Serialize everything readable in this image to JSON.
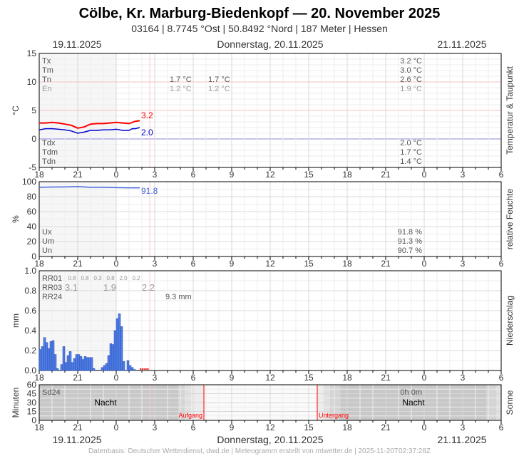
{
  "header": {
    "title": "Cölbe, Kr. Marburg-Biedenkopf  —  20. November 2025",
    "subtitle": "03164  |  8.7745 °Ost  |  50.8492 °Nord  |  187 Meter  |  Hessen"
  },
  "dates": {
    "left": "19.11.2025",
    "center": "Donnerstag, 20.11.2025",
    "right": "21.11.2025"
  },
  "footer": "Datenbasis: Deutscher Wetterdienst, dwd.de | Meteogramm erstellt von mtwetter.de | 2025-11-20T02:37:28Z",
  "x_ticks": [
    "18",
    "21",
    "0",
    "3",
    "6",
    "9",
    "12",
    "15",
    "18",
    "21",
    "0",
    "3",
    "6"
  ],
  "current_time": "02:37",
  "colors": {
    "temp": "#ff0000",
    "dew": "#0000cc",
    "humidity": "#4466dd",
    "precip": "#4f7fe6",
    "forecast": "#ff0000"
  },
  "temp": {
    "ylabel": "°C",
    "side": "Temperatur & Taupunkt",
    "yticks": [
      "15",
      "10",
      "5",
      "0",
      "-5"
    ],
    "stats_left": [
      "Tx",
      "Tm",
      "Tn",
      "En"
    ],
    "stats_left2": [
      "Tdx",
      "Tdm",
      "Tdn"
    ],
    "tn_values": [
      "1.7 °C",
      "1.7 °C"
    ],
    "en_values": [
      "1.2 °C",
      "1.2 °C"
    ],
    "right_values": [
      "3.2 °C",
      "3.0 °C",
      "2.6 °C",
      "1.9 °C"
    ],
    "right_dew": [
      "2.0 °C",
      "1.7 °C",
      "1.4 °C"
    ],
    "last_temp": "3.2",
    "last_dew": "2.0"
  },
  "humidity": {
    "ylabel": "%",
    "side": "relative Feuchte",
    "yticks": [
      "100",
      "80",
      "60",
      "40",
      "20",
      "0"
    ],
    "labels": [
      "Ux",
      "Um",
      "Un"
    ],
    "values": [
      "91.8 %",
      "91.3 %",
      "90.7 %"
    ],
    "last": "91.8"
  },
  "precip": {
    "ylabel": "mm",
    "side": "Niederschlag",
    "yticks": [
      "1.0",
      "0.8",
      "0.6",
      "0.4",
      "0.2",
      "0.0"
    ],
    "labels": [
      "RR01",
      "RR03",
      "RR24"
    ],
    "rr01": [
      "0.8",
      "0.8",
      "0.3",
      "0.8",
      "2.0",
      "0.2"
    ],
    "rr03": [
      "3.1",
      "1.9",
      "2.2"
    ],
    "rr24": "9.3 mm"
  },
  "sun": {
    "ylabel": "Minuten",
    "side": "Sonne",
    "yticks": [
      "60",
      "45",
      "30",
      "15",
      "0"
    ],
    "label": "Sd24",
    "value": "0h 0m",
    "night": "Nacht",
    "sunrise": "Aufgang",
    "sunset": "Untergang",
    "sunrise_time": "06:50",
    "sunset_time": "15:40"
  },
  "chart_data": [
    {
      "type": "line",
      "title": "",
      "xlabel": "",
      "ylabel": "°C",
      "ylim": [
        -5,
        15
      ],
      "grid": true,
      "x": [
        "18:00",
        "18:30",
        "19:00",
        "19:30",
        "20:00",
        "20:30",
        "21:00",
        "21:30",
        "22:00",
        "22:30",
        "23:00",
        "23:30",
        "00:00",
        "00:30",
        "01:00",
        "01:15",
        "01:30",
        "01:50"
      ],
      "series": [
        {
          "name": "Tx",
          "values": [
            2.8,
            2.8,
            2.9,
            2.8,
            2.6,
            2.4,
            1.9,
            2.1,
            2.6,
            2.7,
            2.7,
            2.8,
            2.9,
            2.8,
            2.7,
            2.9,
            3.1,
            3.2
          ]
        },
        {
          "name": "Td",
          "values": [
            1.6,
            1.8,
            1.8,
            1.7,
            1.6,
            1.4,
            1.0,
            1.2,
            1.5,
            1.5,
            1.6,
            1.6,
            1.7,
            1.5,
            1.5,
            1.8,
            1.8,
            2.0
          ]
        }
      ]
    },
    {
      "type": "line",
      "ylabel": "%",
      "ylim": [
        0,
        100
      ],
      "grid": true,
      "x": [
        "18:00",
        "19:00",
        "20:00",
        "21:00",
        "22:00",
        "23:00",
        "00:00",
        "01:00",
        "01:50"
      ],
      "series": [
        {
          "values": [
            92.5,
            92.8,
            93,
            93.5,
            92.5,
            92.5,
            92,
            91.8,
            91.8
          ]
        }
      ]
    },
    {
      "type": "bar",
      "ylabel": "mm",
      "ylim": [
        0,
        1.0
      ],
      "interval_minutes": 10,
      "start": "18:00",
      "values": [
        0.21,
        0.24,
        0.33,
        0.28,
        0.22,
        0.29,
        0.3,
        0.16,
        0.02,
        0,
        0.06,
        0.24,
        0.08,
        0.15,
        0.19,
        0.08,
        0.12,
        0.16,
        0.16,
        0.14,
        0.11,
        0.14,
        0.13,
        0.13,
        0.13,
        0.02,
        0,
        0,
        0,
        0.03,
        0.05,
        0.07,
        0.15,
        0.27,
        0.26,
        0.4,
        0.52,
        0.57,
        0.44,
        0.09,
        0,
        0.1,
        0.05,
        0.03,
        0.01
      ]
    }
  ]
}
